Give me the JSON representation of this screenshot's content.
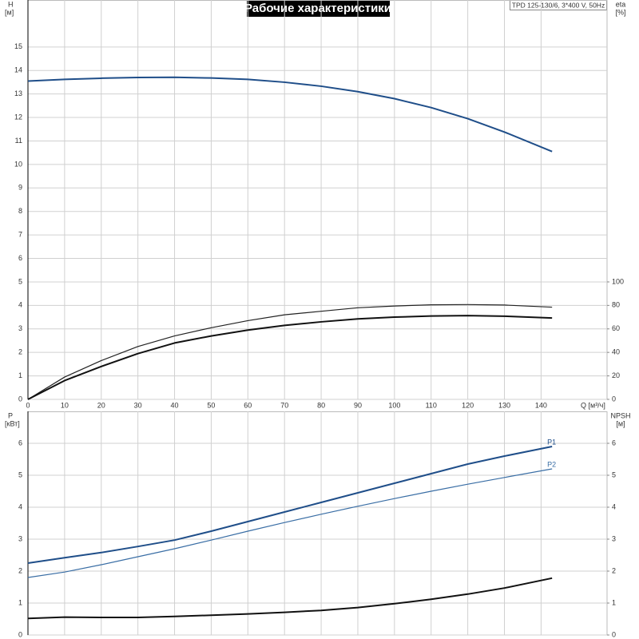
{
  "title": "Рабочие характеристики",
  "model": "TPD 125-130/6, 3*400 V, 50Hz",
  "chart_data": [
    {
      "type": "line",
      "ylabel": "H",
      "ylabel_unit": "[м]",
      "y2label": "eta",
      "y2label_unit": "[%]",
      "xlabel": "Q [м³/ч]",
      "x": [
        0,
        10,
        20,
        30,
        40,
        50,
        60,
        70,
        80,
        90,
        100,
        110,
        120,
        130,
        143
      ],
      "xlim": [
        0,
        158
      ],
      "xticks": [
        0,
        10,
        20,
        30,
        40,
        50,
        60,
        70,
        80,
        90,
        100,
        110,
        120,
        130,
        140
      ],
      "ylim": [
        0,
        17
      ],
      "yticks": [
        0,
        1,
        2,
        3,
        4,
        5,
        6,
        7,
        8,
        9,
        10,
        11,
        12,
        13,
        14,
        15
      ],
      "y2lim": [
        0,
        340
      ],
      "y2ticks": [
        0,
        20,
        40,
        60,
        80,
        100
      ],
      "grid": true,
      "series": [
        {
          "color": "#1f4e89",
          "linewidth": 2,
          "values": [
            13.55,
            13.62,
            13.67,
            13.7,
            13.71,
            13.68,
            13.62,
            13.5,
            13.33,
            13.1,
            12.8,
            12.42,
            11.95,
            11.38,
            10.55
          ]
        },
        {
          "color": "#222222",
          "linewidth": 1.2,
          "axis": "y2",
          "values": [
            0,
            19,
            33,
            45,
            54,
            61,
            67,
            72,
            75,
            78,
            79.5,
            80.5,
            80.7,
            80.3,
            78.5
          ]
        },
        {
          "color": "#111111",
          "linewidth": 2,
          "axis": "y2",
          "values": [
            0,
            16,
            28,
            39,
            48,
            54,
            59,
            63,
            66,
            68.5,
            70,
            71,
            71.3,
            70.8,
            69.3
          ]
        }
      ]
    },
    {
      "type": "line",
      "ylabel": "P",
      "ylabel_unit": "[кВт]",
      "y2label": "NPSH",
      "y2label_unit": "[м]",
      "x": [
        0,
        10,
        20,
        30,
        40,
        50,
        60,
        70,
        80,
        90,
        100,
        110,
        120,
        130,
        143
      ],
      "xlim": [
        0,
        158
      ],
      "ylim": [
        0,
        7
      ],
      "yticks": [
        0,
        1,
        2,
        3,
        4,
        5,
        6
      ],
      "y2lim": [
        0,
        7
      ],
      "y2ticks": [
        0,
        1,
        2,
        3,
        4,
        5,
        6
      ],
      "grid": true,
      "series": [
        {
          "name": "P1",
          "color": "#1f4e89",
          "linewidth": 2,
          "values": [
            2.25,
            2.42,
            2.58,
            2.77,
            2.97,
            3.25,
            3.55,
            3.85,
            4.15,
            4.45,
            4.75,
            5.05,
            5.35,
            5.6,
            5.9
          ]
        },
        {
          "name": "P2",
          "color": "#3a6ea5",
          "linewidth": 1.2,
          "values": [
            1.8,
            1.97,
            2.2,
            2.45,
            2.7,
            2.97,
            3.25,
            3.52,
            3.78,
            4.03,
            4.27,
            4.5,
            4.72,
            4.93,
            5.2
          ]
        },
        {
          "color": "#111111",
          "linewidth": 2,
          "axis": "y2",
          "values": [
            0.52,
            0.56,
            0.55,
            0.55,
            0.58,
            0.62,
            0.66,
            0.71,
            0.77,
            0.86,
            0.98,
            1.12,
            1.28,
            1.47,
            1.78
          ]
        }
      ]
    }
  ]
}
